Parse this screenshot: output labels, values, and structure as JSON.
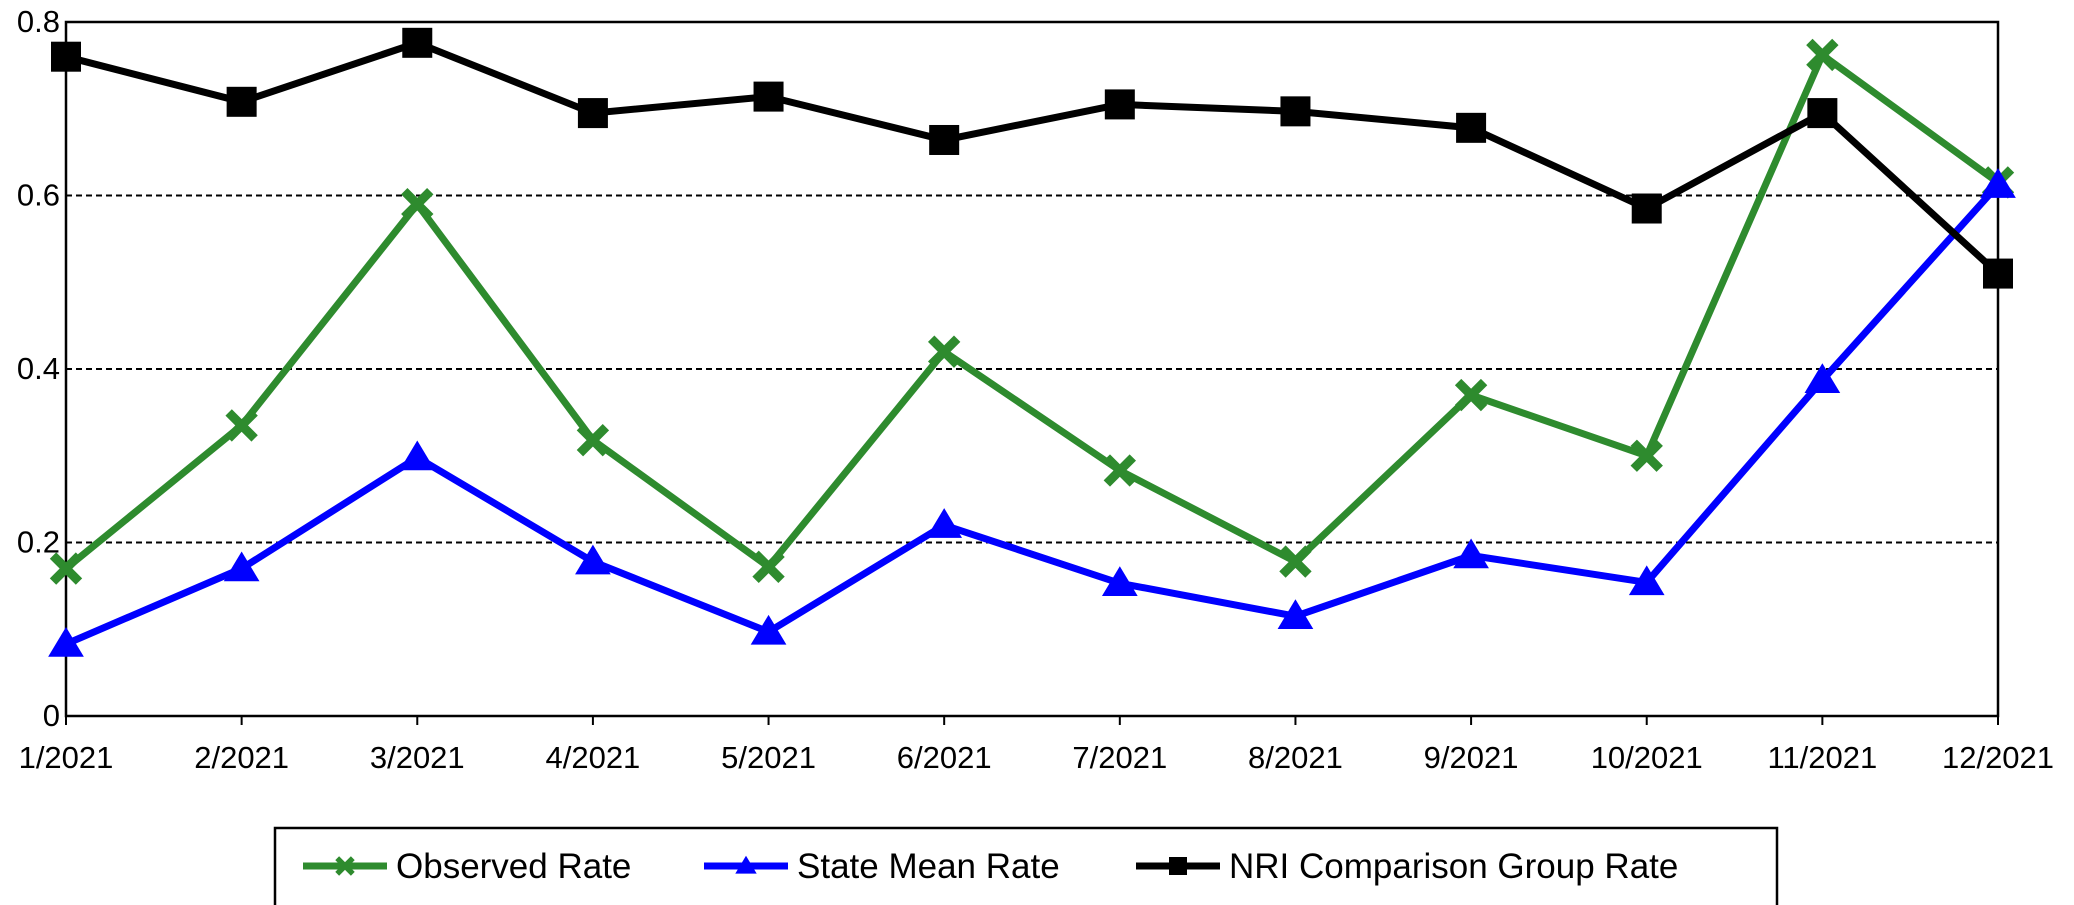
{
  "chart_data": {
    "type": "line",
    "title": "",
    "xlabel": "",
    "ylabel": "",
    "categories": [
      "1/2021",
      "2/2021",
      "3/2021",
      "4/2021",
      "5/2021",
      "6/2021",
      "7/2021",
      "8/2021",
      "9/2021",
      "10/2021",
      "11/2021",
      "12/2021"
    ],
    "ylim": [
      0,
      0.8
    ],
    "yticks": [
      0,
      0.2,
      0.4,
      0.6,
      0.8
    ],
    "ytick_labels": [
      "0",
      "0.2",
      "0.4",
      "0.6",
      "0.8"
    ],
    "grid": "horizontal dashed at 0.2, 0.4, 0.6",
    "legend_position": "bottom",
    "series": [
      {
        "name": "Observed Rate",
        "color": "#2e8b2e",
        "marker": "x",
        "values": [
          0.17,
          0.335,
          0.59,
          0.318,
          0.172,
          0.42,
          0.283,
          0.178,
          0.37,
          0.3,
          0.762,
          0.615
        ]
      },
      {
        "name": "State Mean Rate",
        "color": "#0000ff",
        "marker": "triangle",
        "values": [
          0.083,
          0.17,
          0.298,
          0.178,
          0.097,
          0.22,
          0.153,
          0.115,
          0.185,
          0.154,
          0.387,
          0.612
        ]
      },
      {
        "name": "NRI Comparison Group Rate",
        "color": "#000000",
        "marker": "square",
        "values": [
          0.76,
          0.708,
          0.776,
          0.695,
          0.714,
          0.664,
          0.705,
          0.697,
          0.678,
          0.585,
          0.695,
          0.51
        ]
      }
    ]
  }
}
